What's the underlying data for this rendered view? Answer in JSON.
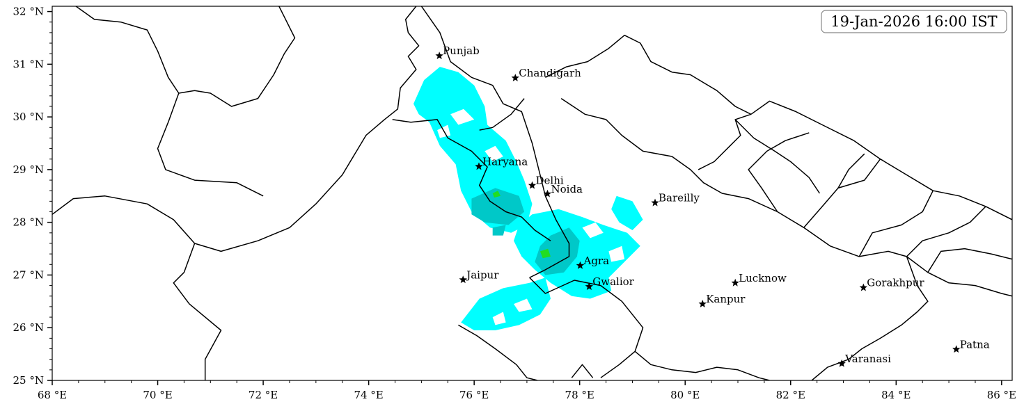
{
  "timestamp": "19-Jan-2026 16:00 IST",
  "extent": {
    "lon": [
      68.0,
      86.2
    ],
    "lat": [
      25.0,
      32.1
    ]
  },
  "x_ticks": [
    {
      "lon": 68,
      "label": "68 °E"
    },
    {
      "lon": 70,
      "label": "70 °E"
    },
    {
      "lon": 72,
      "label": "72 °E"
    },
    {
      "lon": 74,
      "label": "74 °E"
    },
    {
      "lon": 76,
      "label": "76 °E"
    },
    {
      "lon": 78,
      "label": "78 °E"
    },
    {
      "lon": 80,
      "label": "80 °E"
    },
    {
      "lon": 82,
      "label": "82 °E"
    },
    {
      "lon": 84,
      "label": "84 °E"
    },
    {
      "lon": 86,
      "label": "86 °E"
    }
  ],
  "y_ticks": [
    {
      "lat": 25,
      "label": "25 °N"
    },
    {
      "lat": 26,
      "label": "26 °N"
    },
    {
      "lat": 27,
      "label": "27 °N"
    },
    {
      "lat": 28,
      "label": "28 °N"
    },
    {
      "lat": 29,
      "label": "29 °N"
    },
    {
      "lat": 30,
      "label": "30 °N"
    },
    {
      "lat": 31,
      "label": "31 °N"
    },
    {
      "lat": 32,
      "label": "32 °N"
    }
  ],
  "cities": [
    {
      "name": "Punjab",
      "lon": 75.34,
      "lat": 31.16
    },
    {
      "name": "Chandigarh",
      "lon": 76.78,
      "lat": 30.74
    },
    {
      "name": "Haryana",
      "lon": 76.09,
      "lat": 29.06
    },
    {
      "name": "Delhi",
      "lon": 77.1,
      "lat": 28.7
    },
    {
      "name": "Noida",
      "lon": 77.39,
      "lat": 28.54
    },
    {
      "name": "Bareilly",
      "lon": 79.43,
      "lat": 28.37
    },
    {
      "name": "Agra",
      "lon": 78.01,
      "lat": 27.18
    },
    {
      "name": "Jaipur",
      "lon": 75.79,
      "lat": 26.91
    },
    {
      "name": "Gwalior",
      "lon": 78.18,
      "lat": 26.78
    },
    {
      "name": "Lucknow",
      "lon": 80.95,
      "lat": 26.85
    },
    {
      "name": "Kanpur",
      "lon": 80.33,
      "lat": 26.45
    },
    {
      "name": "Gorakhpur",
      "lon": 83.38,
      "lat": 26.76
    },
    {
      "name": "Patna",
      "lon": 85.14,
      "lat": 25.59
    },
    {
      "name": "Varanasi",
      "lon": 82.97,
      "lat": 25.32
    }
  ],
  "boundaries": [
    [
      [
        68.0,
        28.15
      ],
      [
        68.4,
        28.45
      ],
      [
        69.0,
        28.5
      ],
      [
        69.8,
        28.35
      ],
      [
        70.3,
        28.05
      ],
      [
        70.7,
        27.6
      ],
      [
        71.2,
        27.45
      ],
      [
        71.9,
        27.65
      ],
      [
        72.5,
        27.9
      ],
      [
        73.0,
        28.35
      ],
      [
        73.5,
        28.9
      ],
      [
        73.95,
        29.65
      ],
      [
        74.3,
        29.95
      ],
      [
        74.55,
        30.15
      ],
      [
        74.6,
        30.55
      ],
      [
        74.9,
        30.9
      ],
      [
        74.75,
        31.15
      ],
      [
        74.95,
        31.35
      ],
      [
        74.75,
        31.6
      ],
      [
        74.7,
        31.85
      ],
      [
        74.9,
        32.1
      ]
    ],
    [
      [
        68.45,
        32.1
      ],
      [
        68.8,
        31.85
      ],
      [
        69.3,
        31.8
      ],
      [
        69.8,
        31.65
      ],
      [
        70.0,
        31.25
      ],
      [
        70.2,
        30.75
      ],
      [
        70.4,
        30.45
      ],
      [
        70.2,
        29.9
      ],
      [
        70.0,
        29.4
      ],
      [
        70.15,
        29.0
      ],
      [
        70.7,
        28.8
      ],
      [
        71.5,
        28.75
      ],
      [
        72.0,
        28.5
      ]
    ],
    [
      [
        70.4,
        30.45
      ],
      [
        70.7,
        30.5
      ],
      [
        71.0,
        30.45
      ],
      [
        71.4,
        30.2
      ],
      [
        71.9,
        30.35
      ],
      [
        72.2,
        30.8
      ],
      [
        72.4,
        31.2
      ],
      [
        72.6,
        31.5
      ],
      [
        72.4,
        31.9
      ],
      [
        72.3,
        32.1
      ]
    ],
    [
      [
        70.7,
        27.6
      ],
      [
        70.5,
        27.05
      ],
      [
        70.3,
        26.85
      ],
      [
        70.6,
        26.45
      ],
      [
        71.2,
        25.95
      ],
      [
        70.9,
        25.4
      ],
      [
        70.9,
        25.0
      ]
    ],
    [
      [
        75.0,
        32.1
      ],
      [
        75.35,
        31.6
      ],
      [
        75.55,
        31.05
      ],
      [
        75.95,
        30.75
      ],
      [
        76.35,
        30.6
      ],
      [
        76.55,
        30.25
      ],
      [
        76.9,
        30.1
      ],
      [
        77.1,
        29.5
      ],
      [
        77.25,
        28.9
      ],
      [
        77.35,
        28.5
      ],
      [
        77.55,
        28.05
      ],
      [
        77.8,
        27.6
      ],
      [
        77.8,
        27.35
      ],
      [
        77.35,
        27.1
      ],
      [
        77.05,
        26.95
      ]
    ],
    [
      [
        76.1,
        29.75
      ],
      [
        76.35,
        29.8
      ],
      [
        76.7,
        30.05
      ],
      [
        76.95,
        30.35
      ]
    ],
    [
      [
        74.45,
        29.95
      ],
      [
        74.8,
        29.9
      ],
      [
        75.3,
        29.95
      ],
      [
        75.5,
        29.6
      ],
      [
        75.95,
        29.35
      ],
      [
        76.25,
        29.05
      ],
      [
        76.1,
        28.7
      ],
      [
        76.3,
        28.4
      ],
      [
        76.6,
        28.2
      ],
      [
        76.9,
        28.1
      ],
      [
        77.15,
        27.85
      ],
      [
        77.45,
        27.65
      ]
    ],
    [
      [
        77.05,
        26.95
      ],
      [
        77.35,
        26.65
      ],
      [
        77.9,
        26.9
      ],
      [
        78.4,
        26.8
      ],
      [
        78.8,
        26.5
      ],
      [
        79.2,
        26.0
      ],
      [
        79.05,
        25.55
      ],
      [
        78.75,
        25.3
      ],
      [
        78.4,
        25.05
      ]
    ],
    [
      [
        75.7,
        26.05
      ],
      [
        76.05,
        25.85
      ],
      [
        76.4,
        25.6
      ],
      [
        76.8,
        25.3
      ],
      [
        77.0,
        25.05
      ],
      [
        77.2,
        25.0
      ]
    ],
    [
      [
        77.35,
        30.75
      ],
      [
        77.75,
        30.95
      ],
      [
        78.15,
        31.05
      ],
      [
        78.55,
        31.3
      ],
      [
        78.85,
        31.55
      ],
      [
        79.15,
        31.4
      ],
      [
        79.35,
        31.05
      ],
      [
        79.75,
        30.85
      ],
      [
        80.1,
        30.8
      ],
      [
        80.6,
        30.5
      ],
      [
        80.95,
        30.2
      ],
      [
        81.25,
        30.05
      ]
    ],
    [
      [
        77.65,
        30.35
      ],
      [
        78.1,
        30.05
      ],
      [
        78.5,
        29.95
      ],
      [
        78.8,
        29.65
      ],
      [
        79.2,
        29.35
      ],
      [
        79.75,
        29.25
      ],
      [
        80.1,
        29.0
      ],
      [
        80.35,
        28.75
      ],
      [
        80.7,
        28.55
      ],
      [
        81.2,
        28.45
      ],
      [
        81.75,
        28.2
      ],
      [
        82.25,
        27.9
      ],
      [
        82.75,
        27.55
      ],
      [
        83.3,
        27.35
      ],
      [
        83.85,
        27.45
      ],
      [
        84.2,
        27.35
      ],
      [
        84.6,
        27.05
      ],
      [
        85.0,
        26.85
      ],
      [
        85.5,
        26.8
      ],
      [
        86.0,
        26.65
      ],
      [
        86.2,
        26.6
      ]
    ],
    [
      [
        81.25,
        30.05
      ],
      [
        81.6,
        30.3
      ],
      [
        82.1,
        30.1
      ],
      [
        82.6,
        29.85
      ],
      [
        83.2,
        29.55
      ],
      [
        83.7,
        29.2
      ],
      [
        84.2,
        28.9
      ],
      [
        84.7,
        28.6
      ],
      [
        85.2,
        28.5
      ],
      [
        85.7,
        28.3
      ],
      [
        86.2,
        28.05
      ]
    ],
    [
      [
        80.25,
        29.0
      ],
      [
        80.55,
        29.15
      ],
      [
        80.85,
        29.45
      ],
      [
        81.05,
        29.65
      ],
      [
        80.95,
        29.95
      ],
      [
        81.25,
        30.05
      ]
    ],
    [
      [
        81.75,
        28.2
      ],
      [
        81.45,
        28.65
      ],
      [
        81.2,
        29.0
      ],
      [
        81.55,
        29.35
      ],
      [
        81.9,
        29.55
      ],
      [
        82.35,
        29.7
      ]
    ],
    [
      [
        82.25,
        27.9
      ],
      [
        82.6,
        28.3
      ],
      [
        82.9,
        28.65
      ],
      [
        83.4,
        28.8
      ],
      [
        83.7,
        29.2
      ]
    ],
    [
      [
        83.3,
        27.35
      ],
      [
        83.55,
        27.8
      ],
      [
        84.1,
        27.95
      ],
      [
        84.5,
        28.2
      ],
      [
        84.7,
        28.6
      ]
    ],
    [
      [
        84.2,
        27.35
      ],
      [
        84.5,
        27.65
      ],
      [
        85.0,
        27.8
      ],
      [
        85.4,
        28.0
      ],
      [
        85.7,
        28.3
      ]
    ],
    [
      [
        84.6,
        27.05
      ],
      [
        84.85,
        27.45
      ],
      [
        85.3,
        27.5
      ],
      [
        85.8,
        27.4
      ],
      [
        86.2,
        27.3
      ]
    ],
    [
      [
        80.95,
        29.95
      ],
      [
        81.3,
        29.6
      ],
      [
        81.7,
        29.35
      ],
      [
        82.0,
        29.15
      ],
      [
        82.35,
        28.85
      ],
      [
        82.55,
        28.55
      ]
    ],
    [
      [
        82.9,
        28.65
      ],
      [
        83.1,
        29.0
      ],
      [
        83.4,
        29.3
      ]
    ],
    [
      [
        79.05,
        25.55
      ],
      [
        79.35,
        25.3
      ],
      [
        79.75,
        25.2
      ],
      [
        80.2,
        25.15
      ],
      [
        80.6,
        25.25
      ],
      [
        81.0,
        25.2
      ],
      [
        81.4,
        25.05
      ],
      [
        81.6,
        25.0
      ]
    ],
    [
      [
        82.4,
        25.0
      ],
      [
        82.7,
        25.25
      ],
      [
        83.1,
        25.4
      ],
      [
        83.35,
        25.6
      ],
      [
        83.7,
        25.8
      ],
      [
        84.1,
        26.05
      ],
      [
        84.4,
        26.3
      ],
      [
        84.6,
        26.5
      ],
      [
        84.4,
        26.8
      ],
      [
        84.2,
        27.35
      ]
    ],
    [
      [
        77.85,
        25.05
      ],
      [
        78.05,
        25.3
      ],
      [
        78.25,
        25.05
      ]
    ]
  ],
  "precip_light": [
    [
      [
        74.85,
        30.25
      ],
      [
        75.05,
        30.7
      ],
      [
        75.35,
        30.95
      ],
      [
        75.7,
        30.85
      ],
      [
        76.0,
        30.6
      ],
      [
        76.2,
        30.2
      ],
      [
        76.25,
        29.85
      ],
      [
        76.6,
        29.55
      ],
      [
        76.8,
        29.15
      ],
      [
        76.95,
        28.8
      ],
      [
        77.1,
        28.35
      ],
      [
        77.0,
        27.95
      ],
      [
        76.7,
        27.8
      ],
      [
        76.3,
        27.9
      ],
      [
        75.95,
        28.2
      ],
      [
        75.75,
        28.6
      ],
      [
        75.65,
        29.1
      ],
      [
        75.35,
        29.45
      ],
      [
        75.15,
        29.9
      ],
      [
        74.95,
        30.05
      ]
    ],
    [
      [
        77.1,
        28.15
      ],
      [
        77.6,
        28.25
      ],
      [
        78.05,
        28.1
      ],
      [
        78.45,
        27.95
      ],
      [
        78.9,
        27.8
      ],
      [
        79.15,
        27.55
      ],
      [
        78.85,
        27.25
      ],
      [
        78.55,
        26.95
      ],
      [
        78.6,
        26.7
      ],
      [
        78.2,
        26.55
      ],
      [
        77.85,
        26.6
      ],
      [
        77.45,
        26.85
      ],
      [
        77.15,
        27.1
      ],
      [
        76.9,
        27.35
      ],
      [
        76.75,
        27.65
      ],
      [
        76.85,
        27.95
      ]
    ],
    [
      [
        75.75,
        26.1
      ],
      [
        76.1,
        26.55
      ],
      [
        76.55,
        26.75
      ],
      [
        77.05,
        26.85
      ],
      [
        77.35,
        26.95
      ],
      [
        77.45,
        26.55
      ],
      [
        77.25,
        26.25
      ],
      [
        76.85,
        26.05
      ],
      [
        76.4,
        25.95
      ],
      [
        76.0,
        25.95
      ]
    ],
    [
      [
        78.7,
        28.5
      ],
      [
        79.0,
        28.4
      ],
      [
        79.2,
        28.05
      ],
      [
        79.0,
        27.85
      ],
      [
        78.75,
        28.0
      ],
      [
        78.6,
        28.25
      ]
    ]
  ],
  "precip_moderate": [
    [
      [
        75.95,
        28.45
      ],
      [
        76.4,
        28.65
      ],
      [
        76.85,
        28.5
      ],
      [
        76.95,
        28.2
      ],
      [
        76.65,
        27.95
      ],
      [
        76.2,
        28.0
      ],
      [
        75.95,
        28.15
      ]
    ],
    [
      [
        77.45,
        27.75
      ],
      [
        77.8,
        27.9
      ],
      [
        78.0,
        27.65
      ],
      [
        77.95,
        27.35
      ],
      [
        77.7,
        27.05
      ],
      [
        77.35,
        27.0
      ],
      [
        77.15,
        27.25
      ],
      [
        77.25,
        27.55
      ]
    ],
    [
      [
        76.35,
        27.9
      ],
      [
        76.6,
        27.95
      ],
      [
        76.55,
        27.75
      ],
      [
        76.35,
        27.75
      ]
    ]
  ],
  "precip_heavy": [
    [
      [
        77.25,
        27.45
      ],
      [
        77.4,
        27.5
      ],
      [
        77.45,
        27.35
      ],
      [
        77.3,
        27.32
      ]
    ],
    [
      [
        76.35,
        28.55
      ],
      [
        76.45,
        28.6
      ],
      [
        76.5,
        28.5
      ],
      [
        76.38,
        28.47
      ]
    ]
  ],
  "precip_holes": [
    [
      [
        75.55,
        30.05
      ],
      [
        75.8,
        30.15
      ],
      [
        76.0,
        29.95
      ],
      [
        75.7,
        29.85
      ]
    ],
    [
      [
        76.2,
        29.35
      ],
      [
        76.4,
        29.45
      ],
      [
        76.55,
        29.25
      ],
      [
        76.35,
        29.15
      ]
    ],
    [
      [
        75.3,
        29.75
      ],
      [
        75.5,
        29.85
      ],
      [
        75.55,
        29.65
      ],
      [
        75.35,
        29.6
      ]
    ],
    [
      [
        78.05,
        27.9
      ],
      [
        78.3,
        28.0
      ],
      [
        78.45,
        27.8
      ],
      [
        78.2,
        27.7
      ]
    ],
    [
      [
        78.55,
        27.45
      ],
      [
        78.8,
        27.55
      ],
      [
        78.85,
        27.3
      ],
      [
        78.6,
        27.25
      ]
    ],
    [
      [
        76.75,
        26.45
      ],
      [
        77.0,
        26.55
      ],
      [
        77.1,
        26.35
      ],
      [
        76.85,
        26.3
      ]
    ],
    [
      [
        76.35,
        26.2
      ],
      [
        76.55,
        26.3
      ],
      [
        76.6,
        26.1
      ],
      [
        76.4,
        26.05
      ]
    ],
    [
      [
        76.65,
        27.35
      ],
      [
        76.8,
        27.45
      ],
      [
        76.85,
        27.25
      ],
      [
        76.7,
        27.2
      ]
    ]
  ],
  "colors": {
    "light": "#00ffff",
    "moderate": "#00c8c8",
    "heavy": "#22dd22",
    "boundary": "#000000"
  }
}
